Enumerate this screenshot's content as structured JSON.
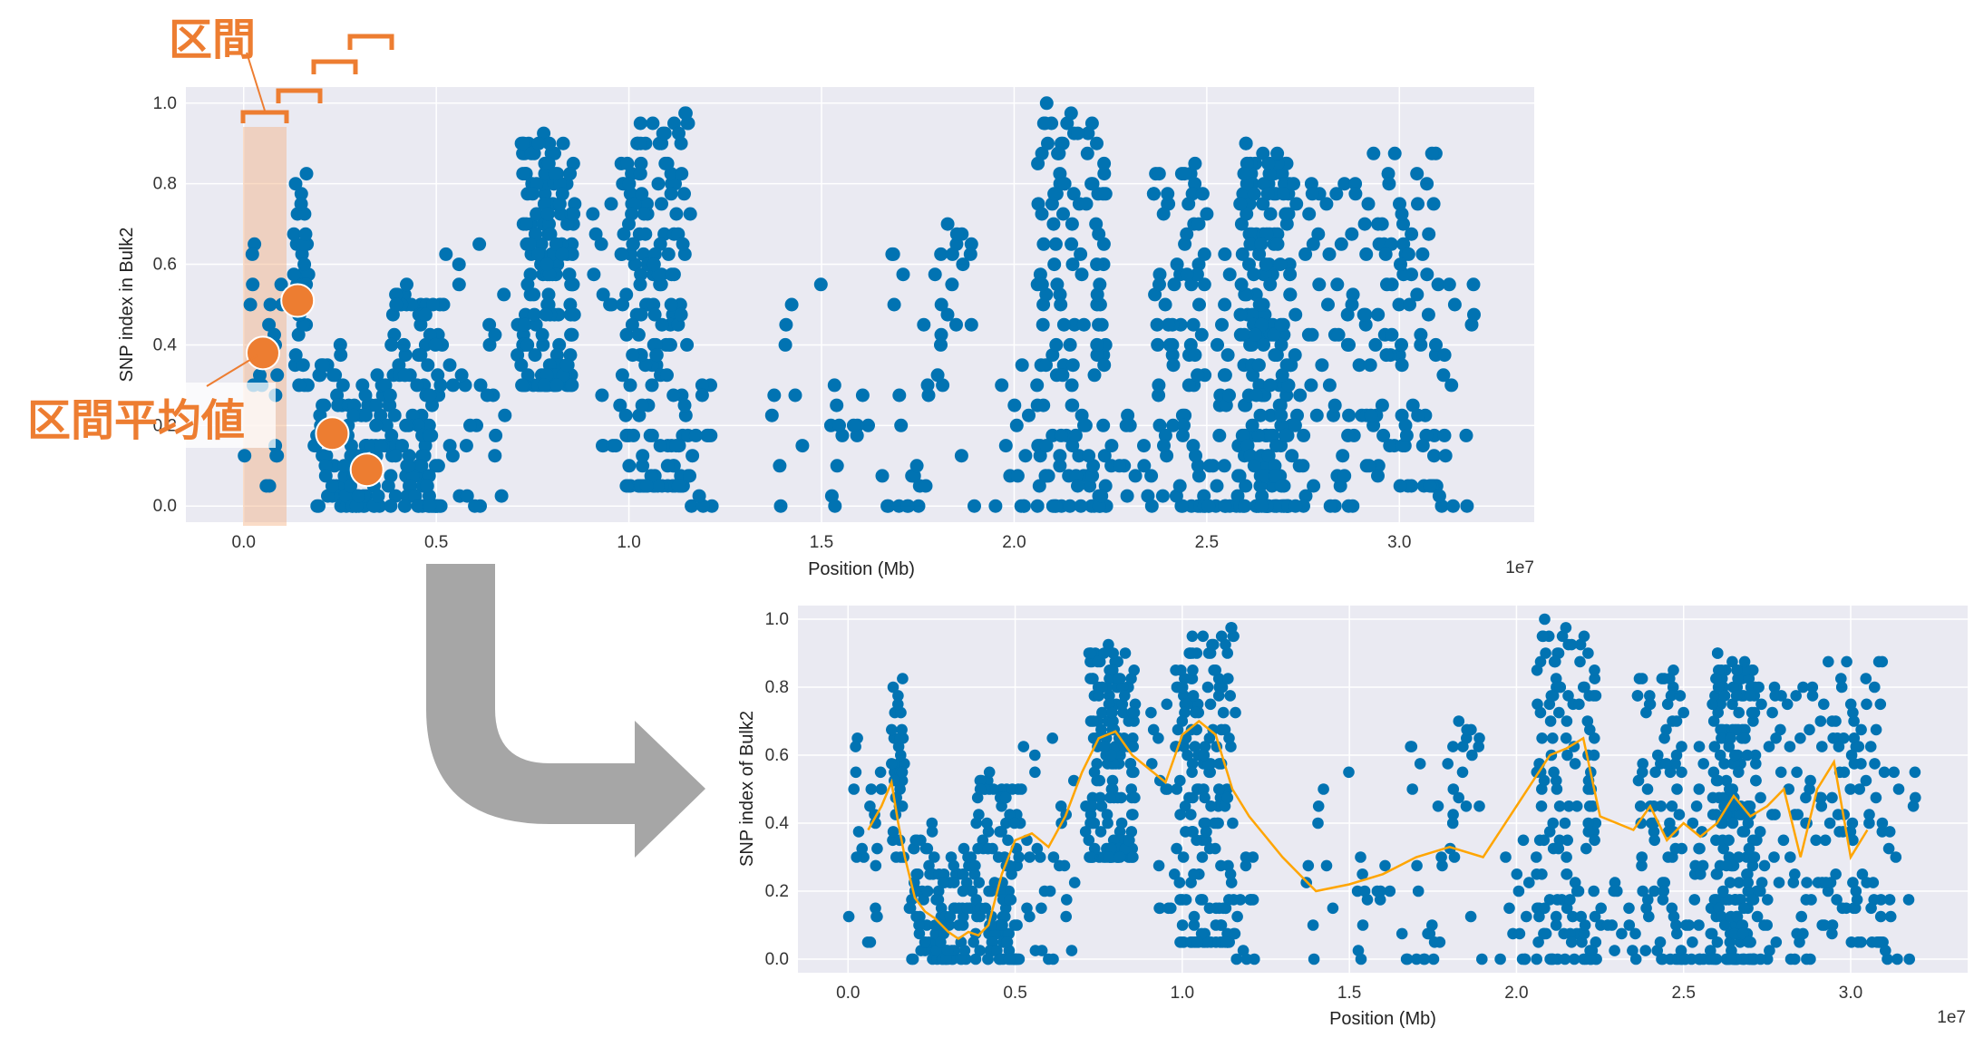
{
  "chart_data": [
    {
      "type": "scatter",
      "title": "",
      "xlabel": "Position (Mb)",
      "ylabel": "SNP index in Bulk2",
      "offset_text": "1e7",
      "xlim": [
        -0.15,
        3.35
      ],
      "ylim": [
        -0.04,
        1.04
      ],
      "xticks": [
        "0.0",
        "0.5",
        "1.0",
        "1.5",
        "2.0",
        "2.5",
        "3.0"
      ],
      "yticks": [
        "0.0",
        "0.2",
        "0.4",
        "0.6",
        "0.8",
        "1.0"
      ],
      "grid": true,
      "point_color": "#0173b2",
      "clusters": [
        {
          "x": [
            0.0,
            0.1
          ],
          "y": [
            0.05,
            0.7
          ],
          "n": 22
        },
        {
          "x": [
            0.13,
            0.17
          ],
          "y": [
            0.3,
            0.82
          ],
          "n": 35
        },
        {
          "x": [
            0.18,
            0.26
          ],
          "y": [
            0.0,
            0.4
          ],
          "n": 40
        },
        {
          "x": [
            0.26,
            0.38
          ],
          "y": [
            0.0,
            0.32
          ],
          "n": 70
        },
        {
          "x": [
            0.38,
            0.52
          ],
          "y": [
            0.0,
            0.55
          ],
          "n": 110
        },
        {
          "x": [
            0.52,
            0.72
          ],
          "y": [
            0.0,
            0.7
          ],
          "n": 30
        },
        {
          "x": [
            0.72,
            0.86
          ],
          "y": [
            0.3,
            0.92
          ],
          "n": 150
        },
        {
          "x": [
            0.9,
            0.98
          ],
          "y": [
            0.15,
            0.75
          ],
          "n": 15
        },
        {
          "x": [
            0.98,
            1.16
          ],
          "y": [
            0.05,
            1.0
          ],
          "n": 170
        },
        {
          "x": [
            1.16,
            1.22
          ],
          "y": [
            0.0,
            0.35
          ],
          "n": 12
        },
        {
          "x": [
            1.36,
            1.5
          ],
          "y": [
            0.0,
            0.55
          ],
          "n": 10
        },
        {
          "x": [
            1.52,
            1.68
          ],
          "y": [
            0.0,
            0.3
          ],
          "n": 16
        },
        {
          "x": [
            1.68,
            1.92
          ],
          "y": [
            0.0,
            0.8
          ],
          "n": 40
        },
        {
          "x": [
            1.95,
            2.06
          ],
          "y": [
            0.0,
            0.4
          ],
          "n": 14
        },
        {
          "x": [
            2.06,
            2.24
          ],
          "y": [
            0.0,
            1.0
          ],
          "n": 140
        },
        {
          "x": [
            2.24,
            2.36
          ],
          "y": [
            0.0,
            0.25
          ],
          "n": 14
        },
        {
          "x": [
            2.36,
            2.5
          ],
          "y": [
            0.0,
            0.85
          ],
          "n": 80
        },
        {
          "x": [
            2.5,
            2.58
          ],
          "y": [
            0.0,
            0.65
          ],
          "n": 25
        },
        {
          "x": [
            2.58,
            2.72
          ],
          "y": [
            0.0,
            0.9
          ],
          "n": 200
        },
        {
          "x": [
            2.72,
            2.9
          ],
          "y": [
            0.0,
            0.8
          ],
          "n": 60
        },
        {
          "x": [
            2.9,
            3.1
          ],
          "y": [
            0.05,
            0.92
          ],
          "n": 90
        },
        {
          "x": [
            3.1,
            3.2
          ],
          "y": [
            0.0,
            0.55
          ],
          "n": 16
        }
      ],
      "highlighted_points": [
        {
          "x": 0.05,
          "y": 0.38
        },
        {
          "x": 0.14,
          "y": 0.51
        },
        {
          "x": 0.23,
          "y": 0.18
        },
        {
          "x": 0.32,
          "y": 0.09
        }
      ]
    },
    {
      "type": "scatter",
      "title": "",
      "xlabel": "Position (Mb)",
      "ylabel": "SNP index of Bulk2",
      "offset_text": "1e7",
      "xlim": [
        -0.15,
        3.35
      ],
      "ylim": [
        -0.04,
        1.04
      ],
      "xticks": [
        "0.0",
        "0.5",
        "1.0",
        "1.5",
        "2.0",
        "2.5",
        "3.0"
      ],
      "yticks": [
        "0.0",
        "0.2",
        "0.4",
        "0.6",
        "0.8",
        "1.0"
      ],
      "grid": true,
      "point_color": "#0173b2",
      "line_color": "#ffa500",
      "smoothed_line": {
        "x": [
          0.06,
          0.1,
          0.13,
          0.15,
          0.17,
          0.2,
          0.23,
          0.26,
          0.3,
          0.33,
          0.36,
          0.39,
          0.42,
          0.46,
          0.5,
          0.55,
          0.6,
          0.65,
          0.7,
          0.75,
          0.8,
          0.85,
          0.9,
          0.95,
          1.0,
          1.05,
          1.1,
          1.15,
          1.2,
          1.3,
          1.4,
          1.5,
          1.6,
          1.7,
          1.8,
          1.9,
          2.0,
          2.1,
          2.15,
          2.2,
          2.25,
          2.3,
          2.35,
          2.4,
          2.45,
          2.5,
          2.55,
          2.6,
          2.65,
          2.7,
          2.75,
          2.8,
          2.85,
          2.9,
          2.95,
          3.0,
          3.05
        ],
        "y": [
          0.38,
          0.45,
          0.52,
          0.4,
          0.3,
          0.18,
          0.14,
          0.12,
          0.08,
          0.06,
          0.08,
          0.07,
          0.1,
          0.25,
          0.35,
          0.37,
          0.33,
          0.42,
          0.55,
          0.65,
          0.67,
          0.6,
          0.56,
          0.52,
          0.66,
          0.7,
          0.66,
          0.5,
          0.42,
          0.3,
          0.2,
          0.22,
          0.25,
          0.3,
          0.33,
          0.3,
          0.45,
          0.6,
          0.62,
          0.65,
          0.42,
          0.4,
          0.38,
          0.45,
          0.35,
          0.4,
          0.36,
          0.4,
          0.48,
          0.42,
          0.45,
          0.5,
          0.3,
          0.5,
          0.58,
          0.3,
          0.38
        ]
      },
      "clusters": [
        {
          "x": [
            0.0,
            0.1
          ],
          "y": [
            0.05,
            0.7
          ],
          "n": 22
        },
        {
          "x": [
            0.13,
            0.17
          ],
          "y": [
            0.3,
            0.82
          ],
          "n": 35
        },
        {
          "x": [
            0.18,
            0.26
          ],
          "y": [
            0.0,
            0.4
          ],
          "n": 40
        },
        {
          "x": [
            0.26,
            0.38
          ],
          "y": [
            0.0,
            0.32
          ],
          "n": 70
        },
        {
          "x": [
            0.38,
            0.52
          ],
          "y": [
            0.0,
            0.55
          ],
          "n": 110
        },
        {
          "x": [
            0.52,
            0.72
          ],
          "y": [
            0.0,
            0.7
          ],
          "n": 30
        },
        {
          "x": [
            0.72,
            0.86
          ],
          "y": [
            0.3,
            0.92
          ],
          "n": 150
        },
        {
          "x": [
            0.9,
            0.98
          ],
          "y": [
            0.15,
            0.75
          ],
          "n": 15
        },
        {
          "x": [
            0.98,
            1.16
          ],
          "y": [
            0.05,
            1.0
          ],
          "n": 170
        },
        {
          "x": [
            1.16,
            1.22
          ],
          "y": [
            0.0,
            0.35
          ],
          "n": 12
        },
        {
          "x": [
            1.36,
            1.5
          ],
          "y": [
            0.0,
            0.55
          ],
          "n": 10
        },
        {
          "x": [
            1.52,
            1.68
          ],
          "y": [
            0.0,
            0.3
          ],
          "n": 16
        },
        {
          "x": [
            1.68,
            1.92
          ],
          "y": [
            0.0,
            0.8
          ],
          "n": 40
        },
        {
          "x": [
            1.95,
            2.06
          ],
          "y": [
            0.0,
            0.4
          ],
          "n": 14
        },
        {
          "x": [
            2.06,
            2.24
          ],
          "y": [
            0.0,
            1.0
          ],
          "n": 140
        },
        {
          "x": [
            2.24,
            2.36
          ],
          "y": [
            0.0,
            0.25
          ],
          "n": 14
        },
        {
          "x": [
            2.36,
            2.5
          ],
          "y": [
            0.0,
            0.85
          ],
          "n": 80
        },
        {
          "x": [
            2.5,
            2.58
          ],
          "y": [
            0.0,
            0.65
          ],
          "n": 25
        },
        {
          "x": [
            2.58,
            2.72
          ],
          "y": [
            0.0,
            0.9
          ],
          "n": 200
        },
        {
          "x": [
            2.72,
            2.9
          ],
          "y": [
            0.0,
            0.8
          ],
          "n": 60
        },
        {
          "x": [
            2.9,
            3.1
          ],
          "y": [
            0.05,
            0.92
          ],
          "n": 90
        },
        {
          "x": [
            3.1,
            3.2
          ],
          "y": [
            0.0,
            0.55
          ],
          "n": 16
        }
      ]
    }
  ],
  "annotations": {
    "interval_label": "区間",
    "interval_mean_label": "区間平均値",
    "accent_color": "#ed7d31",
    "arrow_color": "#a6a6a6"
  }
}
